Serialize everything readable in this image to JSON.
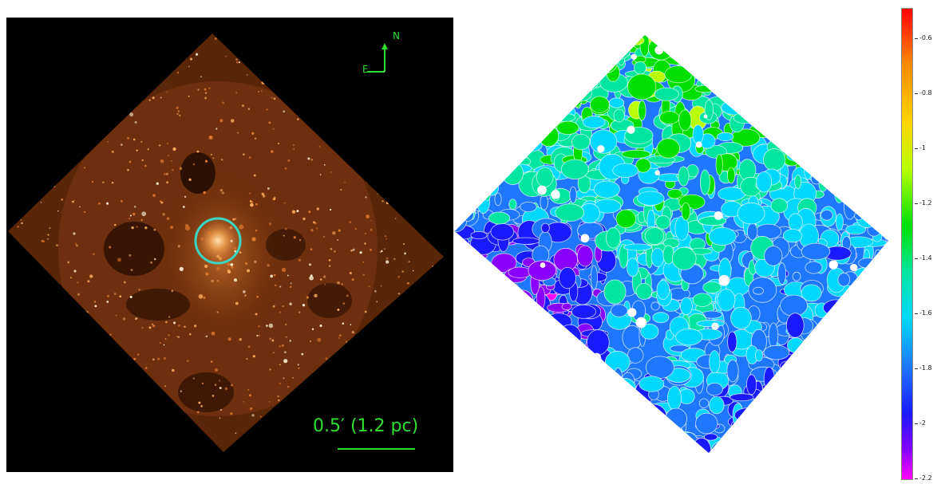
{
  "left_panel": {
    "compass": {
      "north_label": "N",
      "east_label": "E",
      "color": "#2ee02e"
    },
    "scale_bar": {
      "label": "0.5′ (1.2 pc)"
    },
    "region_circle_color": "#3ad6c4",
    "nebula_color": "#c8641e"
  },
  "right_panel": {
    "palette": [
      "#ff00ff",
      "#8a00ff",
      "#1a1aff",
      "#1e78ff",
      "#00d8ff",
      "#00e6a0",
      "#00e000",
      "#b9ff00",
      "#ffd400",
      "#ff8c00",
      "#ff0000"
    ]
  },
  "colorbar": {
    "labels": [
      "-0.6",
      "-0.8",
      "-1",
      "-1.2",
      "-1.4",
      "-1.6",
      "-1.8",
      "-2",
      "-2.2"
    ]
  }
}
